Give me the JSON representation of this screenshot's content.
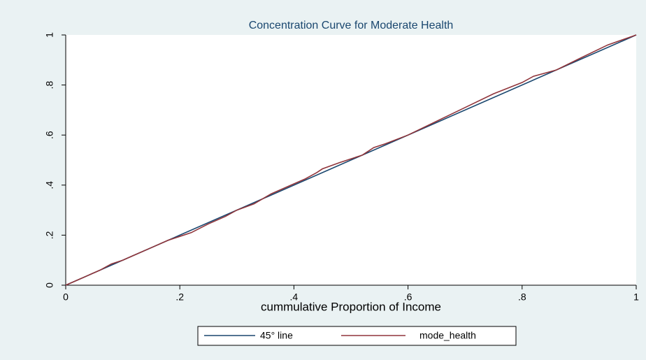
{
  "chart_data": {
    "type": "line",
    "title": "Concentration Curve for Moderate Health",
    "x_label": "cummulative Proportion of Income",
    "series": [
      {
        "name": "45° line",
        "color": "#1a476f",
        "x": [
          0,
          1
        ],
        "values": [
          0,
          1
        ]
      },
      {
        "name": "mode_health",
        "color": "#90353b",
        "x": [
          0,
          0.02,
          0.04,
          0.06,
          0.08,
          0.1,
          0.12,
          0.15,
          0.18,
          0.2,
          0.22,
          0.25,
          0.28,
          0.3,
          0.33,
          0.36,
          0.4,
          0.42,
          0.44,
          0.45,
          0.48,
          0.52,
          0.54,
          0.56,
          0.6,
          0.65,
          0.7,
          0.75,
          0.8,
          0.82,
          0.86,
          0.9,
          0.95,
          1
        ],
        "values": [
          0,
          0.02,
          0.04,
          0.06,
          0.085,
          0.1,
          0.12,
          0.15,
          0.18,
          0.195,
          0.21,
          0.245,
          0.275,
          0.3,
          0.325,
          0.365,
          0.405,
          0.425,
          0.45,
          0.465,
          0.49,
          0.52,
          0.55,
          0.565,
          0.6,
          0.655,
          0.71,
          0.765,
          0.81,
          0.835,
          0.86,
          0.905,
          0.96,
          1
        ]
      }
    ],
    "xlim": [
      0,
      1
    ],
    "xticks": [
      0,
      {
        "value": 0.2,
        "label": ".2"
      },
      {
        "value": 0.4,
        "label": ".4"
      },
      {
        "value": 0.6,
        "label": ".6"
      },
      {
        "value": 0.8,
        "label": ".8"
      },
      1
    ],
    "ylim": [
      0,
      1
    ],
    "yticks": [
      0,
      {
        "value": 0.2,
        "label": ".2"
      },
      {
        "value": 0.4,
        "label": ".4"
      },
      {
        "value": 0.6,
        "label": ".6"
      },
      {
        "value": 0.8,
        "label": ".8"
      },
      1
    ],
    "grid": false,
    "legend": "bottom"
  }
}
